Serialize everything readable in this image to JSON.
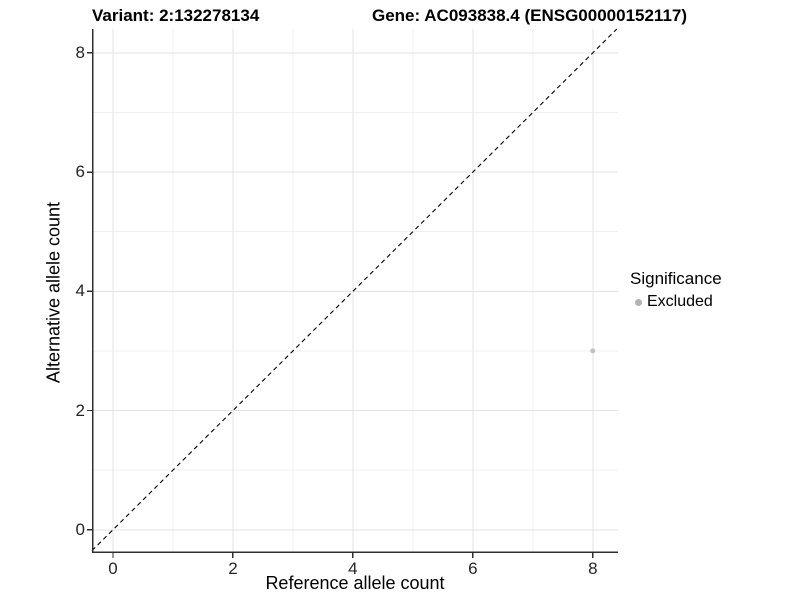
{
  "header": {
    "variant_title": "Variant: 2:132278134",
    "gene_title": "Gene: AC093838.4 (ENSG00000152117)"
  },
  "chart_data": {
    "type": "scatter",
    "xlabel": "Reference allele count",
    "ylabel": "Alternative allele count",
    "xlim": [
      -0.35,
      8.42
    ],
    "ylim": [
      -0.39,
      8.4
    ],
    "x_major_ticks": [
      0,
      2,
      4,
      6,
      8
    ],
    "y_major_ticks": [
      0,
      2,
      4,
      6,
      8
    ],
    "x_minor_ticks": [
      1,
      3,
      5,
      7
    ],
    "y_minor_ticks": [
      1,
      3,
      5,
      7
    ],
    "grid": true,
    "reference_line": {
      "kind": "identity-diagonal",
      "style": "dashed",
      "color": "#000000"
    },
    "series": [
      {
        "name": "Excluded",
        "color": "#c0c0c0",
        "point_radius": 2.5,
        "points": [
          {
            "x": 8,
            "y": 3
          }
        ]
      }
    ],
    "legend": {
      "title": "Significance",
      "position": "right",
      "items": [
        {
          "label": "Excluded",
          "color": "#b3b3b3"
        }
      ]
    }
  },
  "colors": {
    "background": "#ffffff",
    "grid_major": "#e3e3e3",
    "grid_minor": "#f0f0f0",
    "axis_line": "#2f2f2f",
    "tick_mark": "#2f2f2f"
  }
}
